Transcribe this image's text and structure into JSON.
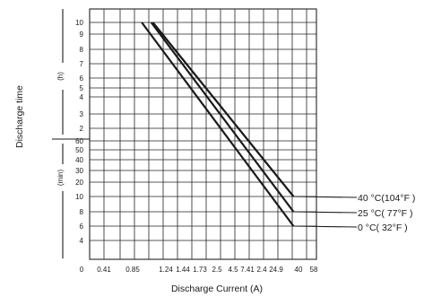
{
  "chart_data": {
    "type": "line",
    "xlabel": "Discharge Current (A)",
    "ylabel": "Discharge time",
    "y_unit_hours": "(h)",
    "y_unit_minutes": "(min)",
    "x_scale": "log",
    "x_tick_labels": [
      "0",
      "0.41",
      "0.85",
      "1.24",
      "1.44",
      "1.73",
      "2.5",
      "4.5",
      "7.41",
      "2.4",
      "24.9",
      "40",
      "58"
    ],
    "y_ticks_hours": [
      "10",
      "9",
      "8",
      "7",
      "6",
      "5",
      "4",
      "3",
      "2"
    ],
    "y_ticks_minutes": [
      "60",
      "50",
      "40",
      "30",
      "20",
      "10",
      "8",
      "6",
      "4"
    ],
    "series": [
      {
        "name": "40 °C(104°F )",
        "points": [
          {
            "x": 1.3,
            "t": "10 h"
          },
          {
            "x": 40,
            "t": "10 min"
          }
        ]
      },
      {
        "name": "25 °C( 77°F )",
        "points": [
          {
            "x": 1.25,
            "t": "10 h"
          },
          {
            "x": 40,
            "t": "8 min"
          }
        ]
      },
      {
        "name": "0 °C( 32°F )",
        "points": [
          {
            "x": 1.0,
            "t": "10 h"
          },
          {
            "x": 40,
            "t": "6 min"
          }
        ]
      }
    ]
  }
}
